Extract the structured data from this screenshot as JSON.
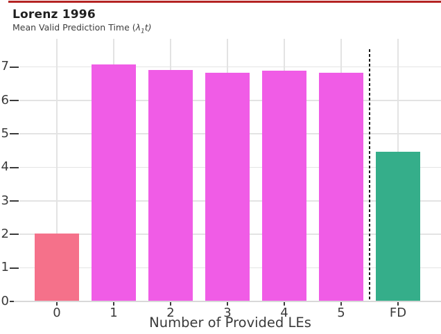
{
  "header": {
    "title": "Lorenz 1996",
    "subtitle_prefix": "Mean Valid Prediction Time (",
    "subtitle_lambda": "λ",
    "subtitle_sub": "1",
    "subtitle_rest": "t)"
  },
  "chart_data": {
    "type": "bar",
    "title": "Lorenz 1996",
    "subtitle": "Mean Valid Prediction Time (λ₁t)",
    "categories": [
      "0",
      "1",
      "2",
      "3",
      "4",
      "5",
      "FD"
    ],
    "values": [
      2.0,
      7.05,
      6.9,
      6.8,
      6.87,
      6.8,
      4.45
    ],
    "bar_colors": [
      "#f5718a",
      "#f05ce6",
      "#f05ce6",
      "#f05ce6",
      "#f05ce6",
      "#f05ce6",
      "#35ae8a"
    ],
    "xlabel": "Number of Provided LEs",
    "ylabel": "",
    "yticks": [
      0,
      1,
      2,
      3,
      4,
      5,
      6,
      7
    ],
    "ylim": [
      0,
      7.8
    ],
    "grid": true,
    "legend": "none",
    "separator_after_index": 5,
    "separator_style": "black dashed vertical line"
  },
  "colors": {
    "accent_rule": "#b42322",
    "title_text": "#1f1f1f",
    "subtitle_text": "#3d3d3d",
    "axis_text": "#3a3a3a",
    "gridline": "#e3e3e3",
    "axis_line": "#d8d8d8",
    "tick": "#3a3a3a",
    "separator": "#1a1a1a",
    "background": "#ffffff"
  }
}
